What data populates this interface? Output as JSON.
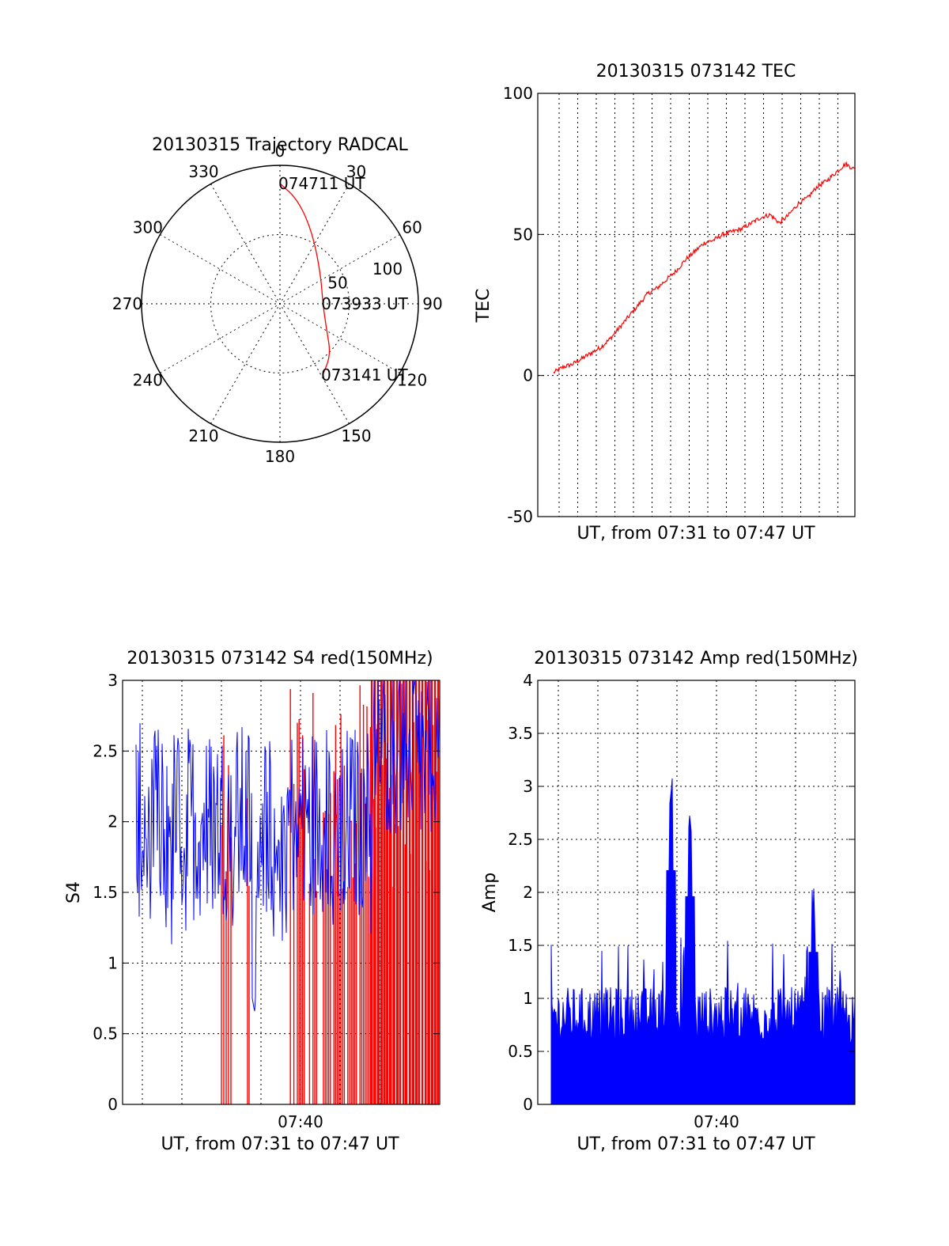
{
  "chart_data": [
    {
      "type": "polar",
      "title": "20130315 Trajectory RADCAL",
      "angle_labels": [
        "0",
        "30",
        "60",
        "90",
        "120",
        "150",
        "180",
        "210",
        "240",
        "270",
        "300",
        "330"
      ],
      "radial_labels": [
        "50",
        "100"
      ],
      "rlim": [
        0,
        100
      ],
      "grid": true,
      "series": [
        {
          "color": "#ff0000",
          "points": [
            {
              "az": 0,
              "r": 87
            },
            {
              "az": 10,
              "r": 76
            },
            {
              "az": 25,
              "r": 56
            },
            {
              "az": 55,
              "r": 36
            },
            {
              "az": 90,
              "r": 31
            },
            {
              "az": 118,
              "r": 38
            },
            {
              "az": 135,
              "r": 52
            },
            {
              "az": 149,
              "r": 60
            }
          ]
        }
      ],
      "annotations": [
        {
          "text": "074711 UT",
          "az": 0,
          "r": 87
        },
        {
          "text": "073933 UT",
          "az": 90,
          "r": 31
        },
        {
          "text": "073141 UT",
          "az": 149,
          "r": 60
        }
      ]
    },
    {
      "type": "line",
      "title": "20130315 073142 TEC",
      "xlabel": "UT, from 07:31 to 07:47 UT",
      "ylabel": "TEC",
      "ylim": [
        -50,
        100
      ],
      "yticks": [
        "-50",
        "0",
        "50",
        "100"
      ],
      "xlim_minutes": [
        0,
        16
      ],
      "grid": true,
      "series": [
        {
          "color": "#ff0000",
          "x_minutes": [
            0,
            0.5,
            1,
            1.5,
            2,
            2.5,
            3,
            3.5,
            4,
            4.5,
            5,
            5.5,
            6,
            6.5,
            7,
            7.5,
            8,
            8.5,
            9,
            9.5,
            10,
            10.5,
            11,
            11.5,
            12,
            12.5,
            13,
            13.5,
            14,
            14.5,
            15,
            15.5,
            16
          ],
          "values": [
            1,
            3,
            4,
            6,
            8,
            10,
            13,
            17,
            21,
            25,
            29,
            31,
            34,
            37,
            41,
            44,
            47,
            48,
            50,
            51,
            52,
            54,
            56,
            57,
            54,
            57,
            61,
            63,
            67,
            69,
            72,
            75,
            73
          ]
        }
      ]
    },
    {
      "type": "line",
      "title": "20130315 073142 S4 red(150MHz)",
      "xlabel": "UT, from 07:31 to 07:47 UT",
      "ylabel": "S4",
      "ylim": [
        0,
        3
      ],
      "yticks": [
        "0",
        "0.5",
        "1",
        "1.5",
        "2",
        "2.5",
        "3"
      ],
      "xticks": [
        "07:40"
      ],
      "grid": true,
      "series": [
        {
          "color": "#ff0000",
          "description_range": [
            0,
            3
          ]
        },
        {
          "color": "#0000ff",
          "description_range": [
            0.5,
            3
          ]
        }
      ]
    },
    {
      "type": "line",
      "title": "20130315 073142 Amp red(150MHz)",
      "xlabel": "UT, from 07:31 to 07:47 UT",
      "ylabel": "Amp",
      "ylim": [
        0,
        4
      ],
      "yticks": [
        "0",
        "0.5",
        "1",
        "1.5",
        "2",
        "2.5",
        "3",
        "3.5",
        "4"
      ],
      "xticks": [
        "07:40"
      ],
      "grid": true,
      "series": [
        {
          "color": "#0000ff",
          "peaks": [
            {
              "x_minutes": 6.3,
              "value": 3.15
            },
            {
              "x_minutes": 7.3,
              "value": 2.8
            },
            {
              "x_minutes": 13.8,
              "value": 2.05
            }
          ]
        }
      ]
    }
  ]
}
